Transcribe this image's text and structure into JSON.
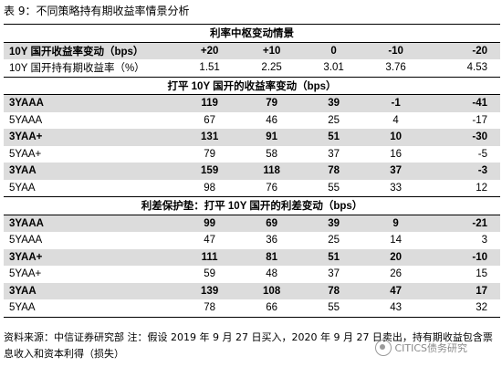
{
  "title": "表 9：不同策略持有期收益率情景分析",
  "sections": [
    {
      "header": "利率中枢变动情景",
      "rows": [
        {
          "label": "10Y 国开收益率变动（bps）",
          "values": [
            "+20",
            "+10",
            "0",
            "-10",
            "-20"
          ],
          "bold": true,
          "shade": true
        },
        {
          "label": "10Y 国开持有期收益率（%）",
          "values": [
            "1.51",
            "2.25",
            "3.01",
            "3.76",
            "4.53"
          ],
          "bold": false,
          "shade": false
        }
      ]
    },
    {
      "header": "打平 10Y 国开的收益率变动（bps）",
      "rows": [
        {
          "label": "3YAAA",
          "values": [
            "119",
            "79",
            "39",
            "-1",
            "-41"
          ],
          "bold": true,
          "shade": true
        },
        {
          "label": "5YAAA",
          "values": [
            "67",
            "46",
            "25",
            "4",
            "-17"
          ],
          "bold": false,
          "shade": false
        },
        {
          "label": "3YAA+",
          "values": [
            "131",
            "91",
            "51",
            "10",
            "-30"
          ],
          "bold": true,
          "shade": true
        },
        {
          "label": "5YAA+",
          "values": [
            "79",
            "58",
            "37",
            "16",
            "-5"
          ],
          "bold": false,
          "shade": false
        },
        {
          "label": "3YAA",
          "values": [
            "159",
            "118",
            "78",
            "37",
            "-3"
          ],
          "bold": true,
          "shade": true
        },
        {
          "label": "5YAA",
          "values": [
            "98",
            "76",
            "55",
            "33",
            "12"
          ],
          "bold": false,
          "shade": false
        }
      ]
    },
    {
      "header": "利差保护垫：打平 10Y 国开的利差变动（bps）",
      "rows": [
        {
          "label": "3YAAA",
          "values": [
            "99",
            "69",
            "39",
            "9",
            "-21"
          ],
          "bold": true,
          "shade": true
        },
        {
          "label": "5YAAA",
          "values": [
            "47",
            "36",
            "25",
            "14",
            "3"
          ],
          "bold": false,
          "shade": false
        },
        {
          "label": "3YAA+",
          "values": [
            "111",
            "81",
            "51",
            "20",
            "-10"
          ],
          "bold": true,
          "shade": true
        },
        {
          "label": "5YAA+",
          "values": [
            "59",
            "48",
            "37",
            "26",
            "15"
          ],
          "bold": false,
          "shade": false
        },
        {
          "label": "3YAA",
          "values": [
            "139",
            "108",
            "78",
            "47",
            "17"
          ],
          "bold": true,
          "shade": true
        },
        {
          "label": "5YAA",
          "values": [
            "78",
            "66",
            "55",
            "43",
            "32"
          ],
          "bold": false,
          "shade": false
        }
      ]
    }
  ],
  "note": "资料来源：中信证券研究部    注：假设 2019 年 9 月 27 日买入，2020 年 9 月 27 日卖出，持有期收益包含票息收入和资本利得（损失）",
  "watermark": "CITICS债务研究"
}
